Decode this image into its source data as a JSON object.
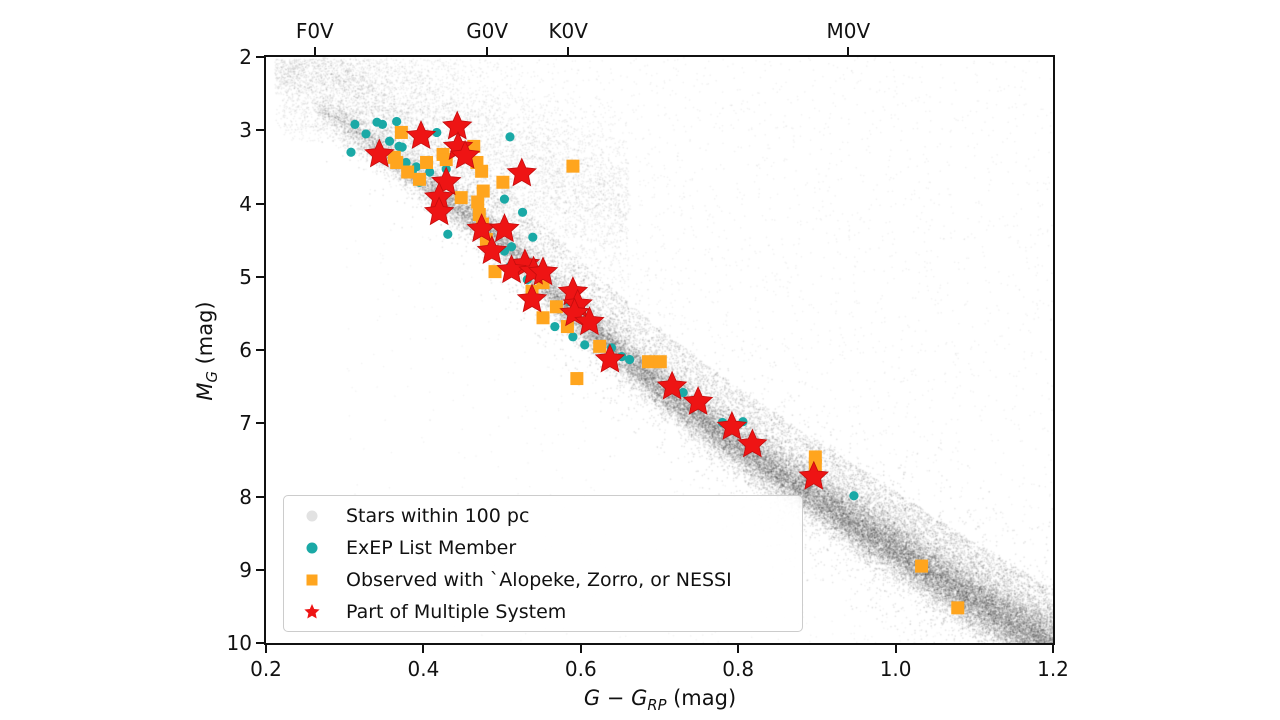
{
  "labels": {
    "x": {
      "v1": "G",
      "minus": " − ",
      "v2": "G",
      "sub": "RP",
      "unit": " (mag)"
    },
    "y": {
      "v": "M",
      "sub": "G",
      "unit": " (mag)"
    }
  },
  "chart_data": {
    "type": "scatter",
    "title": "",
    "xlabel": "G − G_RP (mag)",
    "ylabel": "M_G (mag)",
    "xlim": [
      0.2,
      1.2
    ],
    "ylim": [
      10,
      2
    ],
    "y_axis_inverted": true,
    "grid": false,
    "legend_position": "lower left",
    "x_ticks": {
      "values": [
        0.2,
        0.4,
        0.6,
        0.8,
        1.0,
        1.2
      ],
      "labels": [
        "0.2",
        "0.4",
        "0.6",
        "0.8",
        "1.0",
        "1.2"
      ]
    },
    "y_ticks": {
      "values": [
        2,
        3,
        4,
        5,
        6,
        7,
        8,
        9,
        10
      ],
      "labels": [
        "2",
        "3",
        "4",
        "5",
        "6",
        "7",
        "8",
        "9",
        "10"
      ]
    },
    "top_axis_ticks": [
      {
        "label": "F0V",
        "x": 0.262
      },
      {
        "label": "G0V",
        "x": 0.481
      },
      {
        "label": "K0V",
        "x": 0.584
      },
      {
        "label": "M0V",
        "x": 0.94
      }
    ],
    "series": [
      {
        "name": "Stars within 100 pc",
        "marker": "point",
        "color": "#e2e2e2",
        "render": "procedural_density",
        "description": "dense gray field-star main sequence band from (0.3,2.8) to (1.2,10) with diffuse cloud above",
        "generator": {
          "seed": 42,
          "main_sequence_knots": [
            [
              0.28,
              2.75
            ],
            [
              0.35,
              3.3
            ],
            [
              0.4,
              3.7
            ],
            [
              0.45,
              4.1
            ],
            [
              0.5,
              4.52
            ],
            [
              0.55,
              5.05
            ],
            [
              0.6,
              5.6
            ],
            [
              0.65,
              6.05
            ],
            [
              0.7,
              6.5
            ],
            [
              0.75,
              6.92
            ],
            [
              0.8,
              7.3
            ],
            [
              0.85,
              7.68
            ],
            [
              0.9,
              8.02
            ],
            [
              0.95,
              8.38
            ],
            [
              1.0,
              8.72
            ],
            [
              1.05,
              9.08
            ],
            [
              1.1,
              9.42
            ],
            [
              1.15,
              9.74
            ],
            [
              1.2,
              10.05
            ]
          ],
          "counts": {
            "band": 42000,
            "turnoff": 6000,
            "upper_diffuse": 3600,
            "noise": 700
          }
        }
      },
      {
        "name": "ExEP List Member",
        "marker": "circle",
        "color": "#1aa9a6",
        "points": [
          [
            0.308,
            3.3
          ],
          [
            0.313,
            2.92
          ],
          [
            0.327,
            3.05
          ],
          [
            0.341,
            2.89
          ],
          [
            0.348,
            2.92
          ],
          [
            0.366,
            2.88
          ],
          [
            0.357,
            3.15
          ],
          [
            0.369,
            3.22
          ],
          [
            0.373,
            3.23
          ],
          [
            0.417,
            3.03
          ],
          [
            0.444,
            2.99
          ],
          [
            0.51,
            3.09
          ],
          [
            0.378,
            3.44
          ],
          [
            0.391,
            3.5
          ],
          [
            0.429,
            3.53
          ],
          [
            0.408,
            3.57
          ],
          [
            0.386,
            3.56
          ],
          [
            0.395,
            3.71
          ],
          [
            0.503,
            3.94
          ],
          [
            0.526,
            4.12
          ],
          [
            0.431,
            4.42
          ],
          [
            0.539,
            4.46
          ],
          [
            0.512,
            4.59
          ],
          [
            0.503,
            4.65
          ],
          [
            0.51,
            4.86
          ],
          [
            0.532,
            5.04
          ],
          [
            0.586,
            5.34
          ],
          [
            0.567,
            5.68
          ],
          [
            0.59,
            5.82
          ],
          [
            0.605,
            5.93
          ],
          [
            0.639,
            5.97
          ],
          [
            0.652,
            6.09
          ],
          [
            0.662,
            6.13
          ],
          [
            0.73,
            6.58
          ],
          [
            0.78,
            6.99
          ],
          [
            0.806,
            6.98
          ],
          [
            0.947,
            7.99
          ]
        ]
      },
      {
        "name": "Observed with `Alopeke, Zorro, or NESSI",
        "marker": "square",
        "color": "#ffa51e",
        "points": [
          [
            0.372,
            3.03
          ],
          [
            0.363,
            3.37
          ],
          [
            0.366,
            3.44
          ],
          [
            0.404,
            3.44
          ],
          [
            0.38,
            3.57
          ],
          [
            0.395,
            3.67
          ],
          [
            0.425,
            3.33
          ],
          [
            0.429,
            3.4
          ],
          [
            0.464,
            3.22
          ],
          [
            0.468,
            3.44
          ],
          [
            0.474,
            3.56
          ],
          [
            0.501,
            3.71
          ],
          [
            0.476,
            3.83
          ],
          [
            0.448,
            3.92
          ],
          [
            0.469,
            3.98
          ],
          [
            0.471,
            4.15
          ],
          [
            0.475,
            4.28
          ],
          [
            0.59,
            3.49
          ],
          [
            0.48,
            4.49
          ],
          [
            0.491,
            4.93
          ],
          [
            0.552,
            5.08
          ],
          [
            0.538,
            5.2
          ],
          [
            0.569,
            5.41
          ],
          [
            0.552,
            5.56
          ],
          [
            0.583,
            5.68
          ],
          [
            0.624,
            5.95
          ],
          [
            0.686,
            6.16
          ],
          [
            0.701,
            6.16
          ],
          [
            0.595,
            6.39
          ],
          [
            0.898,
            7.46
          ],
          [
            0.898,
            7.58
          ],
          [
            1.033,
            8.95
          ],
          [
            1.079,
            9.52
          ]
        ]
      },
      {
        "name": "Part of Multiple System",
        "marker": "star",
        "color": "#ee1414",
        "points": [
          [
            0.443,
            2.95
          ],
          [
            0.444,
            3.23
          ],
          [
            0.397,
            3.08
          ],
          [
            0.344,
            3.33
          ],
          [
            0.453,
            3.35
          ],
          [
            0.525,
            3.59
          ],
          [
            0.429,
            3.71
          ],
          [
            0.42,
            3.92
          ],
          [
            0.42,
            4.12
          ],
          [
            0.474,
            4.35
          ],
          [
            0.503,
            4.35
          ],
          [
            0.487,
            4.65
          ],
          [
            0.529,
            4.83
          ],
          [
            0.512,
            4.91
          ],
          [
            0.54,
            4.93
          ],
          [
            0.552,
            4.94
          ],
          [
            0.538,
            5.31
          ],
          [
            0.59,
            5.21
          ],
          [
            0.596,
            5.38
          ],
          [
            0.592,
            5.5
          ],
          [
            0.611,
            5.62
          ],
          [
            0.637,
            6.13
          ],
          [
            0.716,
            6.5
          ],
          [
            0.749,
            6.71
          ],
          [
            0.792,
            7.05
          ],
          [
            0.818,
            7.29
          ],
          [
            0.896,
            7.73
          ]
        ]
      }
    ]
  }
}
